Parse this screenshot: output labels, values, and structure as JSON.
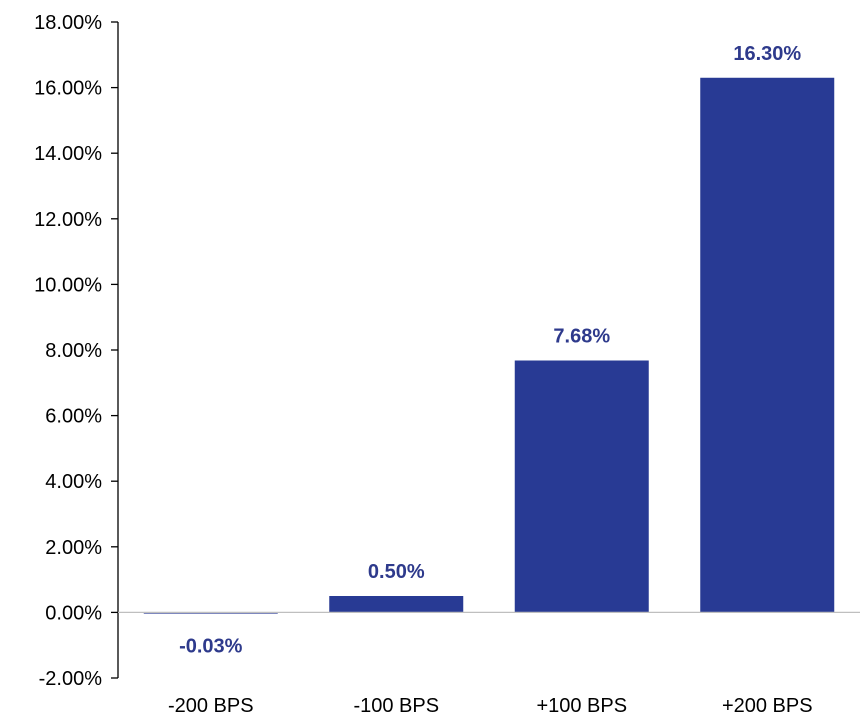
{
  "chart_data": {
    "type": "bar",
    "categories": [
      "-200 BPS",
      "-100 BPS",
      "+100 BPS",
      "+200 BPS"
    ],
    "values": [
      -0.03,
      0.5,
      7.68,
      16.3
    ],
    "data_labels": [
      "-0.03%",
      "0.50%",
      "7.68%",
      "16.30%"
    ],
    "ylim": [
      -2,
      18
    ],
    "yticks": [
      -2,
      0,
      2,
      4,
      6,
      8,
      10,
      12,
      14,
      16,
      18
    ],
    "ytick_labels": [
      "-2.00%",
      "0.00%",
      "2.00%",
      "4.00%",
      "6.00%",
      "8.00%",
      "10.00%",
      "12.00%",
      "14.00%",
      "16.00%",
      "18.00%"
    ],
    "grid": false,
    "legend": "none",
    "title": "",
    "xlabel": "",
    "ylabel": "",
    "colors": {
      "bar": "#283a94",
      "data_label": "#2e3a8c",
      "axis": "#000000"
    }
  }
}
